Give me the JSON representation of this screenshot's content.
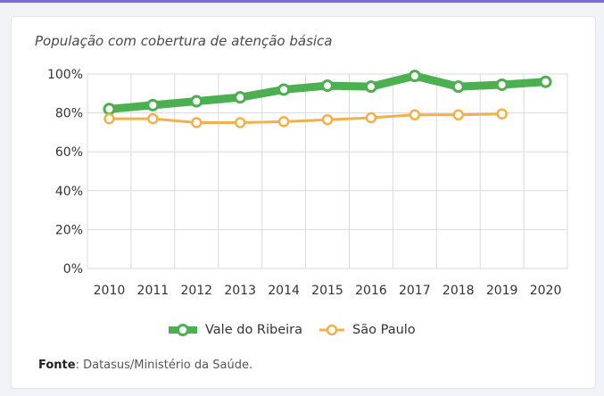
{
  "chart_data": {
    "type": "line",
    "title": "População com cobertura de atenção básica",
    "x": [
      "2010",
      "2011",
      "2012",
      "2013",
      "2014",
      "2015",
      "2016",
      "2017",
      "2018",
      "2019",
      "2020"
    ],
    "ylim": [
      0,
      100
    ],
    "y_ticks": [
      "0%",
      "20%",
      "40%",
      "60%",
      "80%",
      "100%"
    ],
    "grid": true,
    "legend_position": "bottom",
    "series": [
      {
        "name": "Vale do Ribeira",
        "color": "#4caf50",
        "values": [
          82,
          84,
          86,
          88,
          92,
          94,
          93.5,
          99,
          93.5,
          94.5,
          96
        ]
      },
      {
        "name": "São Paulo",
        "color": "#f2b04c",
        "values": [
          77,
          77,
          75,
          75,
          75.5,
          76.5,
          77.5,
          79,
          79,
          79.5,
          null
        ]
      }
    ],
    "source_label": "Fonte",
    "source_text": ": Datasus/Ministério da Saúde."
  }
}
